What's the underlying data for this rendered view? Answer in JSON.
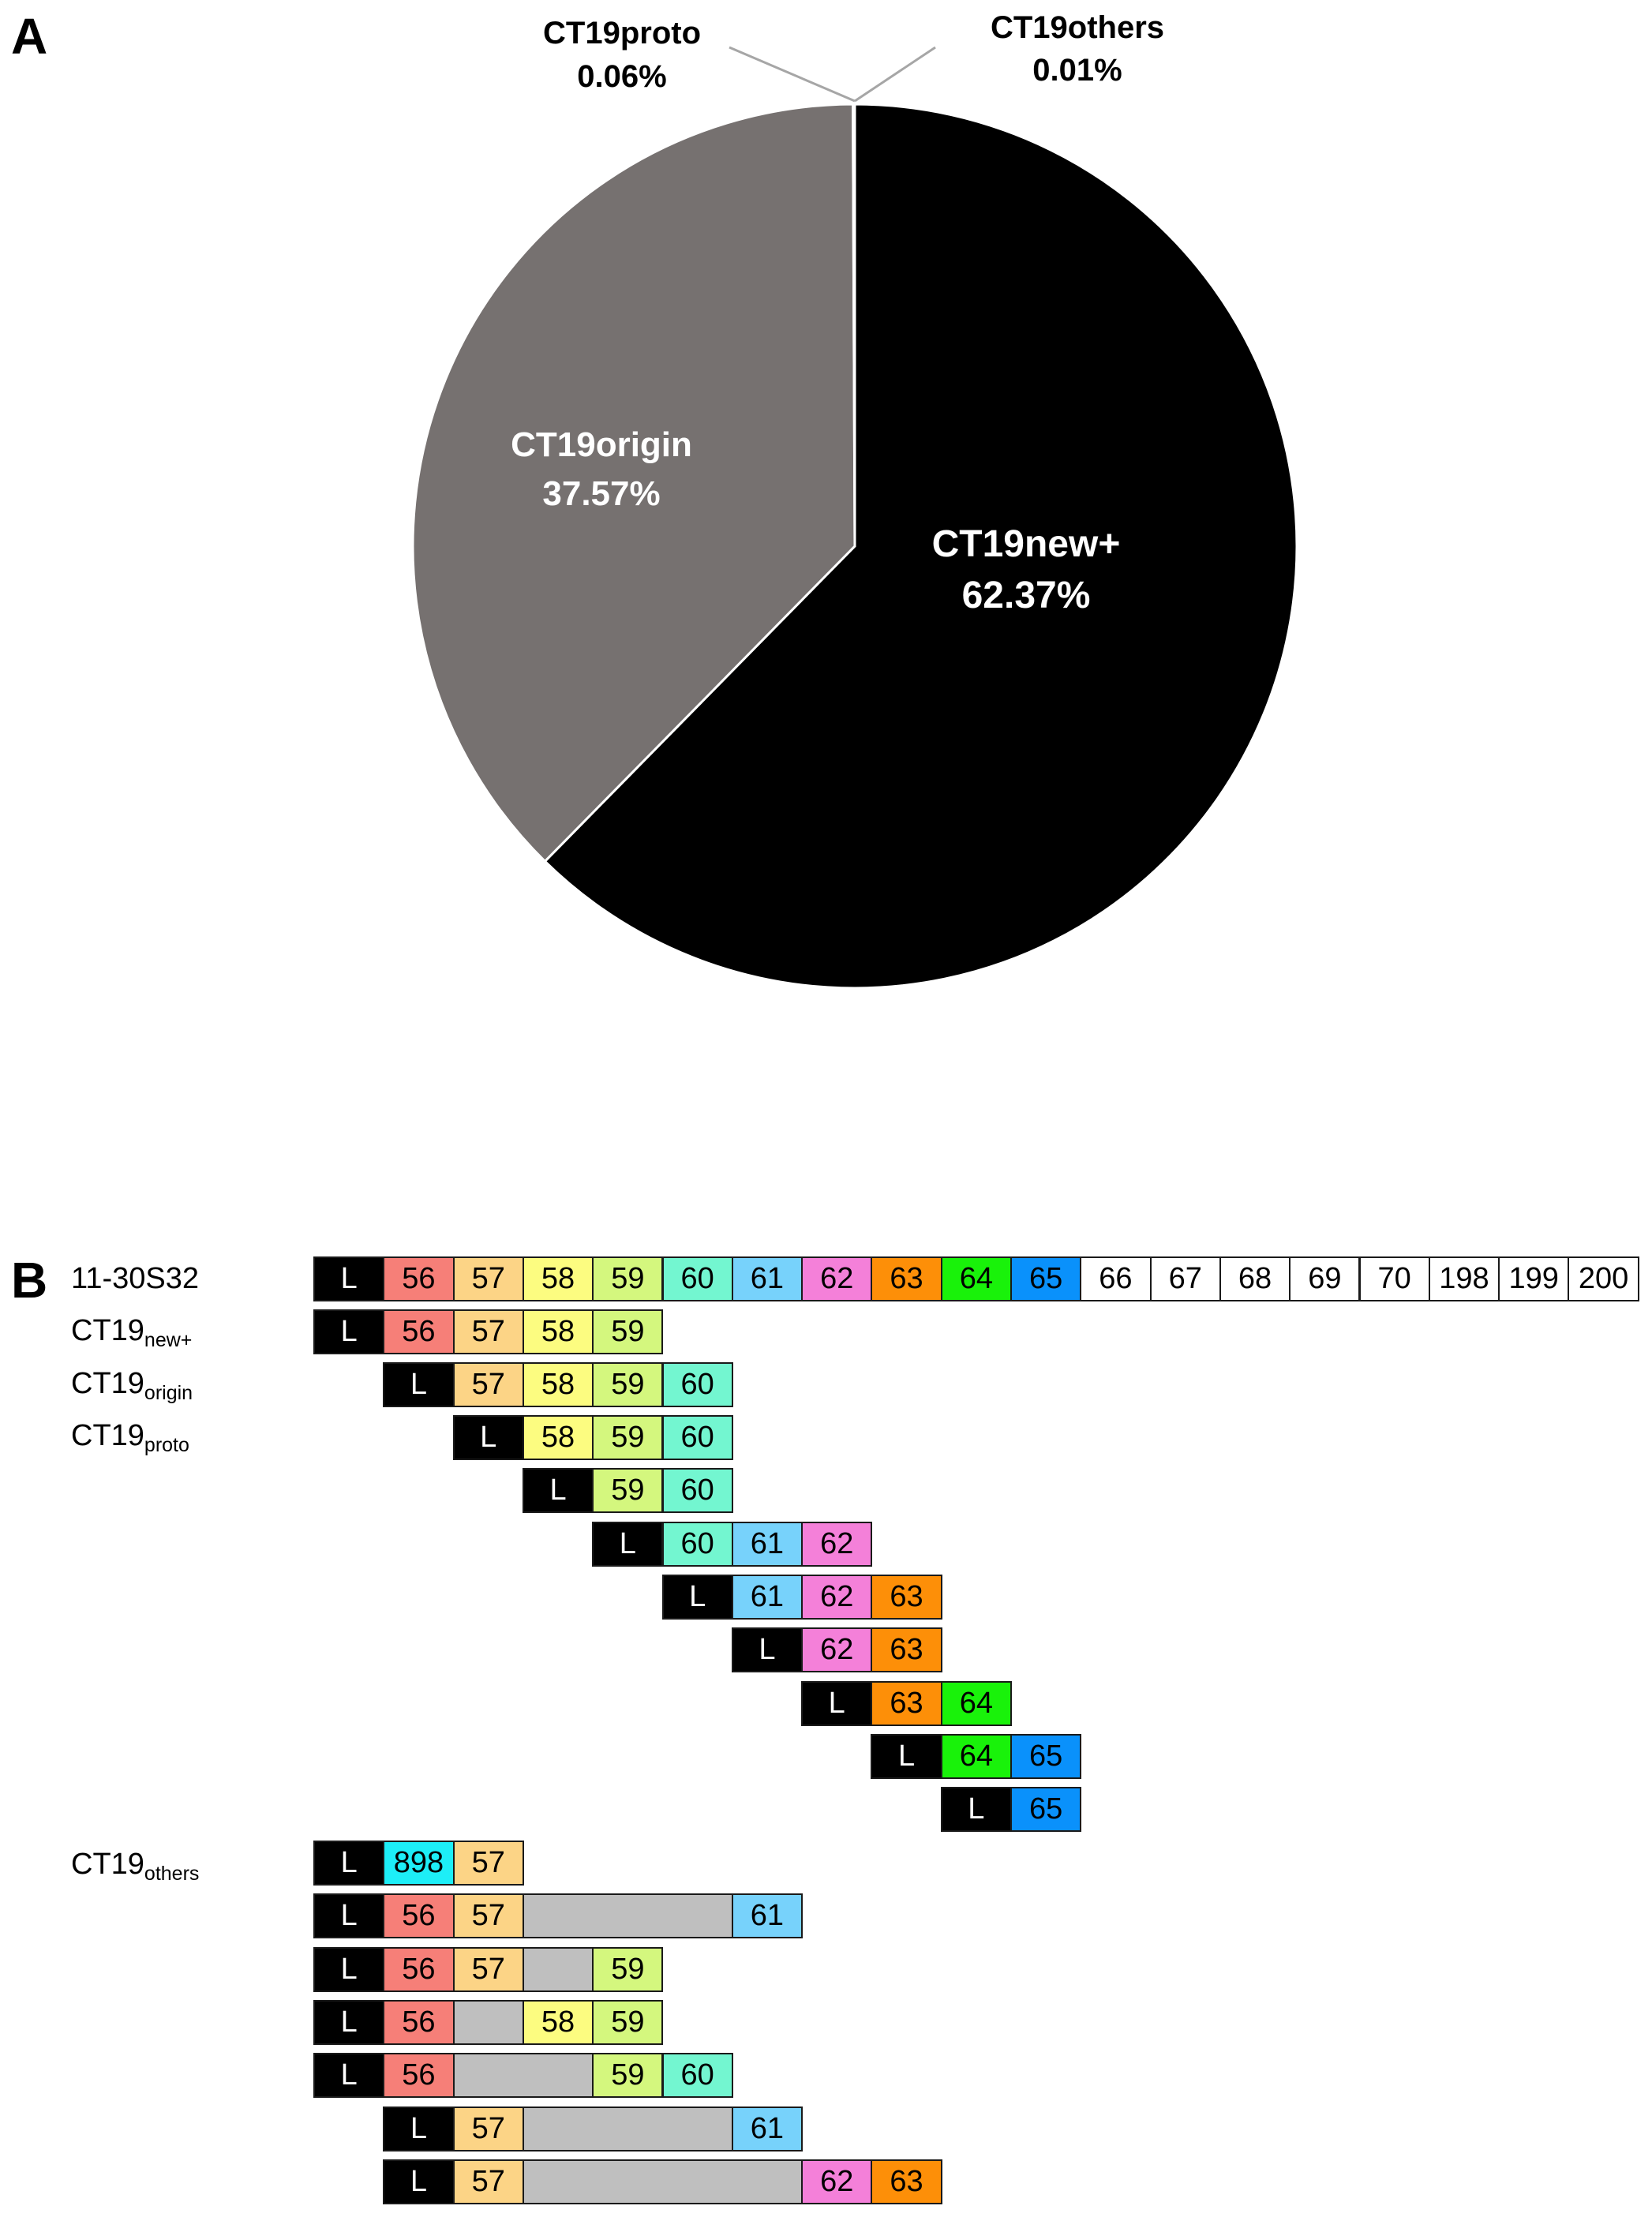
{
  "panel_letters": {
    "a": "A",
    "b": "B"
  },
  "chart_data": [
    {
      "type": "pie",
      "title": "",
      "start_angle_deg": 0,
      "direction": "clockwise",
      "slices": [
        {
          "label": "CT19new+",
          "value": 62.37,
          "value_text": "62.37%",
          "color": "#000000",
          "text_color": "#ffffff"
        },
        {
          "label": "CT19origin",
          "value": 37.57,
          "value_text": "37.57%",
          "color": "#767170",
          "text_color": "#ffffff"
        },
        {
          "label": "CT19proto",
          "value": 0.06,
          "value_text": "0.06%",
          "color": "#767170",
          "text_color": "#000000"
        },
        {
          "label": "CT19others",
          "value": 0.01,
          "value_text": "0.01%",
          "color": "#767170",
          "text_color": "#000000"
        }
      ]
    },
    {
      "type": "table",
      "description_kind": "segment-map",
      "colors": {
        "L": "#000000",
        "56": "#f67f78",
        "57": "#fcd486",
        "58": "#fcfc80",
        "59": "#d4f77e",
        "60": "#73f6d0",
        "61": "#77d2fb",
        "62": "#f480d9",
        "63": "#fd8f08",
        "64": "#19f20a",
        "65": "#0a91fb",
        "898": "#1deef7",
        "gap": "#bfbfbf",
        "plain": "#ffffff"
      },
      "row_labels": [
        {
          "main": "11-30S32",
          "sub": ""
        },
        {
          "main": "CT19",
          "sub": "new+"
        },
        {
          "main": "CT19",
          "sub": "origin"
        },
        {
          "main": "CT19",
          "sub": "proto"
        },
        {
          "main": "CT19",
          "sub": "others"
        }
      ],
      "rows": [
        {
          "cells": [
            "L",
            "56",
            "57",
            "58",
            "59",
            "60",
            "61",
            "62",
            "63",
            "64",
            "65",
            "66",
            "67",
            "68",
            "69",
            "70",
            "198",
            "199",
            "200"
          ]
        },
        {
          "cells": [
            "L",
            "56",
            "57",
            "58",
            "59"
          ]
        },
        {
          "cells": [
            "L",
            "57",
            "58",
            "59",
            "60"
          ]
        },
        {
          "cells": [
            "L",
            "58",
            "59",
            "60"
          ]
        },
        {
          "cells": [
            "L",
            "59",
            "60"
          ]
        },
        {
          "cells": [
            "L",
            "60",
            "61",
            "62"
          ]
        },
        {
          "cells": [
            "L",
            "61",
            "62",
            "63"
          ]
        },
        {
          "cells": [
            "L",
            "62",
            "63"
          ]
        },
        {
          "cells": [
            "L",
            "63",
            "64"
          ]
        },
        {
          "cells": [
            "L",
            "64",
            "65"
          ]
        },
        {
          "cells": [
            "L",
            "65"
          ]
        },
        {
          "cells": [
            "L",
            "898",
            "57"
          ]
        },
        {
          "cells": [
            "L",
            "56",
            "57",
            "gap",
            "gap",
            "gap",
            "61"
          ]
        },
        {
          "cells": [
            "L",
            "56",
            "57",
            "gap",
            "59"
          ]
        },
        {
          "cells": [
            "L",
            "56",
            "gap",
            "58",
            "59"
          ]
        },
        {
          "cells": [
            "L",
            "56",
            "gap",
            "gap",
            "59",
            "60"
          ]
        },
        {
          "cells": [
            "L",
            "57",
            "gap",
            "gap",
            "gap",
            "61"
          ]
        },
        {
          "cells": [
            "L",
            "57",
            "gap",
            "gap",
            "gap",
            "gap",
            "62",
            "63"
          ]
        }
      ]
    }
  ]
}
